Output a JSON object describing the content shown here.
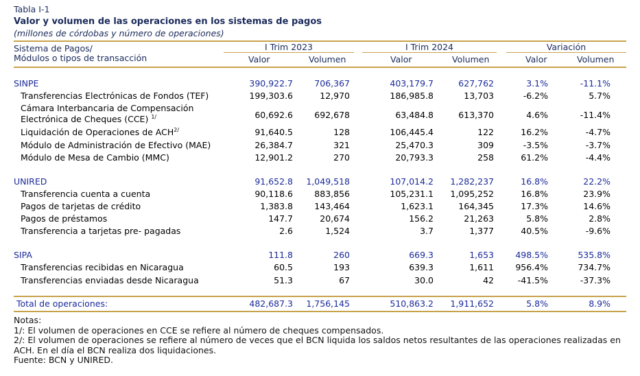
{
  "table_label": "Tabla I-1",
  "title": "Valor y volumen de las operaciones en los sistemas de pagos",
  "subtitle": "(millones de córdobas y número de operaciones)",
  "header": {
    "col0_line1": "Sistema de Pagos/",
    "col0_line2": "Módulos o tipos de transacción",
    "group1": "I Trim 2023",
    "group2": "I Trim 2024",
    "group3": "Variación",
    "valor": "Valor",
    "volumen": "Volumen"
  },
  "rows": [
    {
      "name": "SINPE",
      "v23": "390,922.7",
      "n23": "706,367",
      "v24": "403,179.7",
      "n24": "627,762",
      "vv": "3.1%",
      "vn": "-11.1%"
    },
    {
      "name": "Transferencias Electrónicas de Fondos (TEF)",
      "v23": "199,303.6",
      "n23": "12,970",
      "v24": "186,985.8",
      "n24": "13,703",
      "vv": "-6.2%",
      "vn": "5.7%"
    },
    {
      "name_l1": "Cámara Interbancaria de Compensación",
      "name_l2": "Electrónica de Cheques (CCE)",
      "sup": "1/",
      "v23": "60,692.6",
      "n23": "692,678",
      "v24": "63,484.8",
      "n24": "613,370",
      "vv": "4.6%",
      "vn": "-11.4%"
    },
    {
      "name": "Liquidación de Operaciones de ACH",
      "sup": "2/",
      "v23": "91,640.5",
      "n23": "128",
      "v24": "106,445.4",
      "n24": "122",
      "vv": "16.2%",
      "vn": "-4.7%"
    },
    {
      "name": "Módulo de Administración de Efectivo (MAE)",
      "v23": "26,384.7",
      "n23": "321",
      "v24": "25,470.3",
      "n24": "309",
      "vv": "-3.5%",
      "vn": "-3.7%"
    },
    {
      "name": "Módulo de Mesa de Cambio (MMC)",
      "v23": "12,901.2",
      "n23": "270",
      "v24": "20,793.3",
      "n24": "258",
      "vv": "61.2%",
      "vn": "-4.4%"
    },
    {
      "name": "UNIRED",
      "v23": "91,652.8",
      "n23": "1,049,518",
      "v24": "107,014.2",
      "n24": "1,282,237",
      "vv": "16.8%",
      "vn": "22.2%"
    },
    {
      "name": "Transferencia cuenta a cuenta",
      "v23": "90,118.6",
      "n23": "883,856",
      "v24": "105,231.1",
      "n24": "1,095,252",
      "vv": "16.8%",
      "vn": "23.9%"
    },
    {
      "name": "Pagos de tarjetas de crédito",
      "v23": "1,383.8",
      "n23": "143,464",
      "v24": "1,623.1",
      "n24": "164,345",
      "vv": "17.3%",
      "vn": "14.6%"
    },
    {
      "name": "Pagos de préstamos",
      "v23": "147.7",
      "n23": "20,674",
      "v24": "156.2",
      "n24": "21,263",
      "vv": "5.8%",
      "vn": "2.8%"
    },
    {
      "name": "Transferencia a tarjetas pre- pagadas",
      "v23": "2.6",
      "n23": "1,524",
      "v24": "3.7",
      "n24": "1,377",
      "vv": "40.5%",
      "vn": "-9.6%"
    },
    {
      "name": "SIPA",
      "v23": "111.8",
      "n23": "260",
      "v24": "669.3",
      "n24": "1,653",
      "vv": "498.5%",
      "vn": "535.8%"
    },
    {
      "name": "Transferencias recibidas en Nicaragua",
      "v23": "60.5",
      "n23": "193",
      "v24": "639.3",
      "n24": "1,611",
      "vv": "956.4%",
      "vn": "734.7%"
    },
    {
      "name": "Transferencias enviadas desde Nicaragua",
      "v23": "51.3",
      "n23": "67",
      "v24": "30.0",
      "n24": "42",
      "vv": "-41.5%",
      "vn": "-37.3%"
    }
  ],
  "total": {
    "name": "Total de operaciones:",
    "v23": "482,687.3",
    "n23": "1,756,145",
    "v24": "510,863.2",
    "n24": "1,911,652",
    "vv": "5.8%",
    "vn": "8.9%"
  },
  "notes": {
    "heading": "Notas:",
    "n1": "1/: El volumen de operaciones en CCE se refiere al número de cheques compensados.",
    "n2": "2/: El volumen de operaciones se refiere al número de veces que el BCN liquida los saldos netos resultantes de las operaciones realizadas en ACH. En el día el BCN realiza dos liquidaciones.",
    "source": "Fuente: BCN y UNIRED."
  }
}
